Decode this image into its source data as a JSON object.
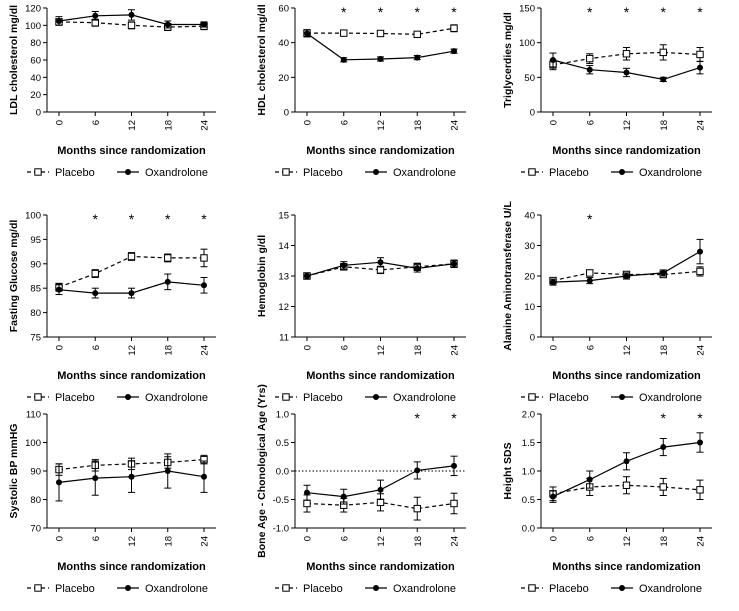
{
  "series_styles": {
    "Placebo": {
      "marker": "open-square",
      "line": "dashed"
    },
    "Oxandrolone": {
      "marker": "filled-circle",
      "line": "solid"
    }
  },
  "chart_data": [
    {
      "type": "line",
      "title": "",
      "xlabel": "Months since randomization",
      "ylabel": "LDL cholesterol mg/dl",
      "x": [
        0,
        6,
        12,
        18,
        24
      ],
      "ylim": [
        0,
        120
      ],
      "yticks": [
        "0",
        "20",
        "40",
        "60",
        "80",
        "100",
        "120"
      ],
      "xticks": [
        "0",
        "6",
        "12",
        "18",
        "24"
      ],
      "series": [
        {
          "name": "Placebo",
          "values": [
            104,
            103,
            100,
            98,
            99
          ],
          "errors": [
            3,
            4,
            4,
            4,
            4
          ]
        },
        {
          "name": "Oxandrolone",
          "values": [
            105,
            111,
            112,
            101,
            101
          ],
          "errors": [
            5,
            5,
            6,
            4,
            3
          ]
        }
      ],
      "significant_at": [],
      "reference_line": null
    },
    {
      "type": "line",
      "title": "",
      "xlabel": "Months since randomization",
      "ylabel": "HDL cholesterol mg/dl",
      "x": [
        0,
        6,
        12,
        18,
        24
      ],
      "ylim": [
        0,
        60
      ],
      "yticks": [
        "0",
        "20",
        "40",
        "60"
      ],
      "xticks": [
        "0",
        "6",
        "12",
        "18",
        "24"
      ],
      "series": [
        {
          "name": "Placebo",
          "values": [
            45.5,
            45.5,
            45.3,
            44.8,
            48.3
          ],
          "errors": [
            2,
            1.5,
            1.5,
            1.5,
            2
          ]
        },
        {
          "name": "Oxandrolone",
          "values": [
            45.3,
            30.1,
            30.6,
            31.4,
            35.1
          ],
          "errors": [
            2,
            1.2,
            1.2,
            1.2,
            1.2
          ]
        }
      ],
      "significant_at": [
        6,
        12,
        18,
        24
      ],
      "reference_line": null
    },
    {
      "type": "line",
      "title": "",
      "xlabel": "Months since randomization",
      "ylabel": "Triglycerdies mg/dl",
      "x": [
        0,
        6,
        12,
        18,
        24
      ],
      "ylim": [
        0,
        150
      ],
      "yticks": [
        "0",
        "50",
        "100",
        "150"
      ],
      "xticks": [
        "0",
        "6",
        "12",
        "18",
        "24"
      ],
      "series": [
        {
          "name": "Placebo",
          "values": [
            68,
            77,
            84,
            86,
            83
          ],
          "errors": [
            7,
            7,
            9,
            11,
            10
          ]
        },
        {
          "name": "Oxandrolone",
          "values": [
            75,
            61,
            57,
            47,
            64
          ],
          "errors": [
            10,
            6,
            6,
            3,
            9
          ]
        }
      ],
      "significant_at": [
        6,
        12,
        18,
        24
      ],
      "reference_line": null
    },
    {
      "type": "line",
      "title": "",
      "xlabel": "Months since randomization",
      "ylabel": "Fasting Glucose mg/dl",
      "x": [
        0,
        6,
        12,
        18,
        24
      ],
      "ylim": [
        75,
        100
      ],
      "yticks": [
        "75",
        "80",
        "85",
        "90",
        "95",
        "100"
      ],
      "xticks": [
        "0",
        "6",
        "12",
        "18",
        "24"
      ],
      "series": [
        {
          "name": "Placebo",
          "values": [
            85.2,
            88,
            91.5,
            91.2,
            91.2
          ],
          "errors": [
            0.8,
            0.8,
            0.8,
            0.8,
            1.8
          ]
        },
        {
          "name": "Oxandrolone",
          "values": [
            84.7,
            84,
            84,
            86.3,
            85.6
          ],
          "errors": [
            1,
            1,
            1,
            1.6,
            1.6
          ]
        }
      ],
      "significant_at": [
        6,
        12,
        18,
        24
      ],
      "reference_line": null
    },
    {
      "type": "line",
      "title": "",
      "xlabel": "Months since randomization",
      "ylabel": "Hemoglobin g/dl",
      "x": [
        0,
        6,
        12,
        18,
        24
      ],
      "ylim": [
        11,
        15
      ],
      "yticks": [
        "11",
        "12",
        "13",
        "14",
        "15"
      ],
      "xticks": [
        "0",
        "6",
        "12",
        "18",
        "24"
      ],
      "series": [
        {
          "name": "Placebo",
          "values": [
            13.0,
            13.3,
            13.2,
            13.3,
            13.4
          ],
          "errors": [
            0.1,
            0.1,
            0.12,
            0.12,
            0.12
          ]
        },
        {
          "name": "Oxandrolone",
          "values": [
            13.0,
            13.35,
            13.45,
            13.25,
            13.4
          ],
          "errors": [
            0.1,
            0.12,
            0.15,
            0.12,
            0.12
          ]
        }
      ],
      "significant_at": [],
      "reference_line": null
    },
    {
      "type": "line",
      "title": "",
      "xlabel": "Months since randomization",
      "ylabel": "Alanine Aminotransferase U/L",
      "x": [
        0,
        6,
        12,
        18,
        24
      ],
      "ylim": [
        0,
        40
      ],
      "yticks": [
        "0",
        "10",
        "20",
        "30",
        "40"
      ],
      "xticks": [
        "0",
        "6",
        "12",
        "18",
        "24"
      ],
      "series": [
        {
          "name": "Placebo",
          "values": [
            18.5,
            21,
            20.5,
            20.5,
            21.5
          ],
          "errors": [
            1,
            1,
            1,
            1,
            1.5
          ]
        },
        {
          "name": "Oxandrolone",
          "values": [
            18,
            18.5,
            20,
            21,
            28
          ],
          "errors": [
            1,
            1,
            1,
            1,
            4
          ]
        }
      ],
      "significant_at": [
        6
      ],
      "reference_line": null
    },
    {
      "type": "line",
      "title": "",
      "xlabel": "Months since randomization",
      "ylabel": "Systolic BP mmHG",
      "x": [
        0,
        6,
        12,
        18,
        24
      ],
      "ylim": [
        70,
        110
      ],
      "yticks": [
        "70",
        "80",
        "90",
        "100",
        "110"
      ],
      "xticks": [
        "0",
        "6",
        "12",
        "18",
        "24"
      ],
      "series": [
        {
          "name": "Placebo",
          "values": [
            90.5,
            92,
            92.5,
            93,
            94
          ],
          "errors": [
            2,
            2,
            2,
            2,
            1.5
          ]
        },
        {
          "name": "Oxandrolone",
          "values": [
            86,
            87.5,
            88,
            90,
            88
          ],
          "errors": [
            6.5,
            6,
            5.5,
            6,
            5.5
          ]
        }
      ],
      "significant_at": [],
      "reference_line": null
    },
    {
      "type": "line",
      "title": "",
      "xlabel": "Months since randomization",
      "ylabel": "Bone Age - Chonological Age (Yrs)",
      "x": [
        0,
        6,
        12,
        18,
        24
      ],
      "ylim": [
        -1.0,
        1.0
      ],
      "yticks": [
        "-1.0",
        "-0.5",
        "0.0",
        "0.5",
        "1.0"
      ],
      "xticks": [
        "0",
        "6",
        "12",
        "18",
        "24"
      ],
      "series": [
        {
          "name": "Placebo",
          "values": [
            -0.57,
            -0.6,
            -0.55,
            -0.66,
            -0.57
          ],
          "errors": [
            0.15,
            0.12,
            0.15,
            0.2,
            0.18
          ]
        },
        {
          "name": "Oxandrolone",
          "values": [
            -0.38,
            -0.45,
            -0.33,
            0.01,
            0.09
          ],
          "errors": [
            0.13,
            0.13,
            0.17,
            0.15,
            0.17
          ]
        }
      ],
      "significant_at": [
        18,
        24
      ],
      "reference_line": 0.0
    },
    {
      "type": "line",
      "title": "",
      "xlabel": "Months since randomization",
      "ylabel": "Height SDS",
      "x": [
        0,
        6,
        12,
        18,
        24
      ],
      "ylim": [
        0.0,
        2.0
      ],
      "yticks": [
        "0.0",
        "0.5",
        "1.0",
        "1.5",
        "2.0"
      ],
      "xticks": [
        "0",
        "6",
        "12",
        "18",
        "24"
      ],
      "series": [
        {
          "name": "Placebo",
          "values": [
            0.6,
            0.72,
            0.75,
            0.72,
            0.67
          ],
          "errors": [
            0.12,
            0.15,
            0.15,
            0.15,
            0.17
          ]
        },
        {
          "name": "Oxandrolone",
          "values": [
            0.55,
            0.85,
            1.17,
            1.42,
            1.5
          ],
          "errors": [
            0.1,
            0.15,
            0.15,
            0.15,
            0.17
          ]
        }
      ],
      "significant_at": [
        18,
        24
      ],
      "reference_line": null
    }
  ]
}
